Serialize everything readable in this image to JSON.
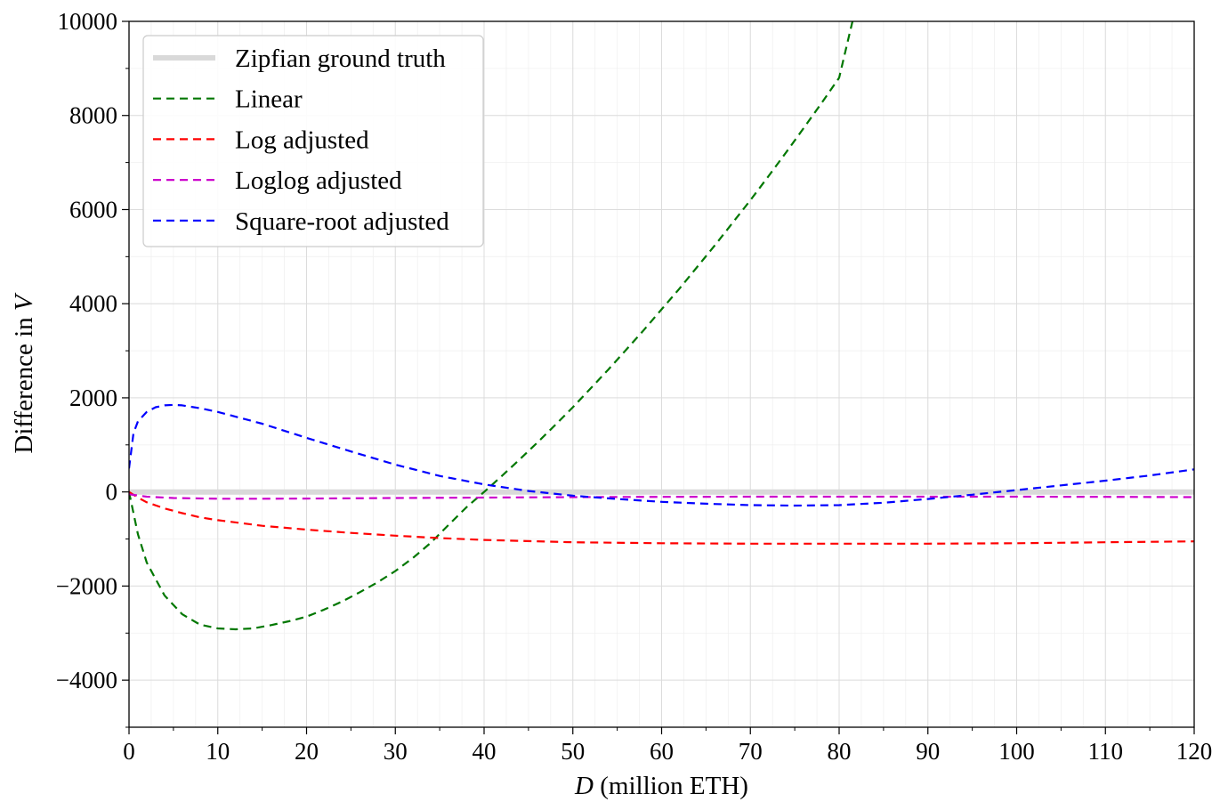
{
  "chart_data": {
    "type": "line",
    "title": "",
    "xlabel": {
      "var": "D",
      "rest": " (million ETH)"
    },
    "ylabel": {
      "prefix": "Difference in ",
      "var": "V"
    },
    "xlim": [
      0,
      120
    ],
    "ylim": [
      -5000,
      10000
    ],
    "xticks": [
      0,
      10,
      20,
      30,
      40,
      50,
      60,
      70,
      80,
      90,
      100,
      110,
      120
    ],
    "xtick_labels": [
      "0",
      "10",
      "20",
      "30",
      "40",
      "50",
      "60",
      "70",
      "80",
      "90",
      "100",
      "110",
      "120"
    ],
    "yticks": [
      -4000,
      -2000,
      0,
      2000,
      4000,
      6000,
      8000,
      10000
    ],
    "ytick_labels": [
      "−4000",
      "−2000",
      "0",
      "2000",
      "4000",
      "6000",
      "8000",
      "10000"
    ],
    "grid": true,
    "legend_position": "top-left",
    "series": [
      {
        "name": "Zipfian ground truth",
        "color": "#d9d9d9",
        "style": "solid",
        "x": [
          0,
          120
        ],
        "y": [
          0,
          0
        ]
      },
      {
        "name": "Linear",
        "color": "#007700",
        "style": "dashed",
        "x": [
          0,
          1,
          2,
          4,
          6,
          8,
          10,
          12,
          14,
          16,
          18,
          20,
          22,
          24,
          26,
          28,
          30,
          32,
          34,
          36,
          38,
          40,
          42,
          44,
          46,
          48,
          50,
          52,
          54,
          56,
          58,
          60,
          62,
          64,
          66,
          68,
          70,
          72,
          74,
          76,
          78,
          80,
          81.5
        ],
        "y": [
          0,
          -900,
          -1500,
          -2200,
          -2600,
          -2820,
          -2900,
          -2920,
          -2900,
          -2830,
          -2750,
          -2650,
          -2500,
          -2330,
          -2130,
          -1920,
          -1680,
          -1400,
          -1080,
          -700,
          -330,
          0,
          340,
          690,
          1050,
          1420,
          1800,
          2200,
          2600,
          3020,
          3440,
          3880,
          4320,
          4780,
          5240,
          5720,
          6200,
          6700,
          7210,
          7730,
          8260,
          8800,
          10000
        ]
      },
      {
        "name": "Log adjusted",
        "color": "#ff0000",
        "style": "dashed",
        "x": [
          0,
          1,
          2,
          4,
          6,
          8,
          10,
          15,
          20,
          25,
          30,
          35,
          40,
          50,
          60,
          70,
          80,
          90,
          100,
          110,
          120
        ],
        "y": [
          0,
          -120,
          -220,
          -350,
          -450,
          -540,
          -600,
          -720,
          -800,
          -870,
          -930,
          -980,
          -1020,
          -1070,
          -1090,
          -1100,
          -1100,
          -1100,
          -1090,
          -1070,
          -1050
        ]
      },
      {
        "name": "Loglog adjusted",
        "color": "#cc00cc",
        "style": "dashed",
        "x": [
          0,
          2,
          5,
          10,
          15,
          20,
          30,
          40,
          50,
          60,
          70,
          80,
          90,
          100,
          110,
          120
        ],
        "y": [
          -50,
          -100,
          -130,
          -145,
          -145,
          -140,
          -130,
          -120,
          -110,
          -105,
          -100,
          -100,
          -100,
          -100,
          -105,
          -110
        ]
      },
      {
        "name": "Square-root adjusted",
        "color": "#0000ff",
        "style": "dashed",
        "x": [
          0,
          0.5,
          1,
          2,
          3,
          4,
          5,
          6,
          8,
          10,
          15,
          20,
          25,
          30,
          35,
          40,
          45,
          50,
          55,
          60,
          65,
          70,
          75,
          80,
          85,
          90,
          95,
          100,
          105,
          110,
          115,
          120
        ],
        "y": [
          500,
          1250,
          1500,
          1700,
          1800,
          1840,
          1850,
          1840,
          1780,
          1700,
          1450,
          1150,
          860,
          580,
          340,
          160,
          20,
          -80,
          -150,
          -210,
          -250,
          -280,
          -290,
          -280,
          -230,
          -150,
          -60,
          40,
          140,
          240,
          350,
          480
        ]
      }
    ]
  }
}
